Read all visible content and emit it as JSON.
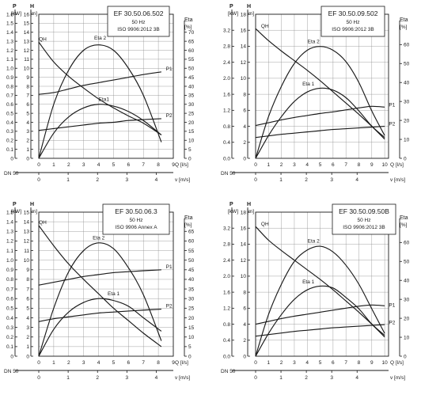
{
  "chart_data": [
    {
      "type": "line",
      "info": {
        "title": "EF 30.50.06.502",
        "freq": "50 Hz",
        "norm": "ISO 9906:2012 3B"
      },
      "left_axis_title_power": "P",
      "left_unit_power": "[kW]",
      "left_axis_title_head": "H",
      "left_unit_head": "[m]",
      "right_axis_title": "Eta",
      "right_unit": "[%]",
      "x_unit": "Q [l/s]",
      "x2_unit": "v [m/s]",
      "dn_label": "DN 50",
      "y_head_ticks": [
        "0",
        "1",
        "2",
        "3",
        "4",
        "5",
        "6",
        "7",
        "8",
        "9",
        "10",
        "11",
        "12",
        "13",
        "14",
        "15",
        "16"
      ],
      "y_power_ticks": [
        "0",
        "0.1",
        "0.2",
        "0.3",
        "0.4",
        "0.5",
        "0.6",
        "0.7",
        "0.8",
        "0.9",
        "1.0",
        "1.1",
        "1.2",
        "1.3",
        "1.4",
        "1.5",
        "1.6"
      ],
      "y_eta_ticks": [
        "0",
        "5",
        "10",
        "15",
        "20",
        "25",
        "30",
        "35",
        "40",
        "45",
        "50",
        "55",
        "60",
        "65",
        "70",
        "75"
      ],
      "x_ticks": [
        "0",
        "1",
        "2",
        "3",
        "4",
        "5",
        "6",
        "7",
        "8",
        "9"
      ],
      "v_ticks": [
        "0",
        "1",
        "2",
        "3",
        "4"
      ],
      "xlim": [
        0,
        9
      ],
      "vlim": [
        0,
        4.58
      ],
      "head_lim": [
        0,
        16
      ],
      "power_lim": [
        0,
        1.6
      ],
      "eta_lim": [
        0,
        80
      ],
      "series": [
        {
          "name": "QH",
          "axis": "head",
          "x": [
            0,
            1,
            2,
            3,
            4,
            5,
            6,
            7,
            8.2
          ],
          "y": [
            12.9,
            10.7,
            9.1,
            7.8,
            6.6,
            5.6,
            4.7,
            3.9,
            2.6
          ]
        },
        {
          "name": "Eta 2",
          "axis": "eta",
          "x": [
            0,
            1,
            2,
            3,
            4,
            5,
            6,
            7,
            8.2
          ],
          "y": [
            0,
            30,
            49,
            60,
            63,
            60,
            50,
            35,
            9
          ]
        },
        {
          "name": "Eta1",
          "axis": "eta",
          "x": [
            0,
            1,
            2,
            3,
            4,
            5,
            6,
            7,
            8.2
          ],
          "y": [
            0,
            14,
            23,
            28,
            30,
            29,
            26,
            21,
            13
          ]
        },
        {
          "name": "P1",
          "axis": "power",
          "x": [
            0,
            1,
            2,
            3,
            4,
            5,
            6,
            7,
            8.2
          ],
          "y": [
            0.71,
            0.73,
            0.77,
            0.81,
            0.84,
            0.87,
            0.9,
            0.93,
            0.96
          ]
        },
        {
          "name": "P2",
          "axis": "power",
          "x": [
            0,
            1,
            2,
            3,
            4,
            5,
            6,
            7,
            8.2
          ],
          "y": [
            0.31,
            0.33,
            0.35,
            0.37,
            0.39,
            0.4,
            0.42,
            0.43,
            0.44
          ]
        }
      ]
    },
    {
      "type": "line",
      "info": {
        "title": "EF 30.50.09.502",
        "freq": "50 Hz",
        "norm": "ISO 9906:2012 3B"
      },
      "left_axis_title_power": "P",
      "left_unit_power": "[kW]",
      "left_axis_title_head": "H",
      "left_unit_head": "[m]",
      "right_axis_title": "Eta",
      "right_unit": "[%]",
      "x_unit": "Q [l/s]",
      "x2_unit": "v [m/s]",
      "dn_label": "DN 50",
      "y_head_ticks": [
        "0",
        "2",
        "4",
        "6",
        "8",
        "10",
        "12",
        "14",
        "16",
        "18"
      ],
      "y_power_ticks": [
        "0.0",
        "0.4",
        "0.8",
        "1.2",
        "1.6",
        "2.0",
        "2.4",
        "2.8",
        "3.2"
      ],
      "y_eta_ticks": [
        "0",
        "10",
        "20",
        "30",
        "40",
        "50",
        "60",
        "70"
      ],
      "x_ticks": [
        "0",
        "1",
        "2",
        "3",
        "4",
        "5",
        "6",
        "7",
        "8",
        "9",
        "10"
      ],
      "v_ticks": [
        "0",
        "1",
        "2",
        "3",
        "4"
      ],
      "xlim": [
        0,
        10.3
      ],
      "vlim": [
        0,
        5.24
      ],
      "head_lim": [
        0,
        18
      ],
      "power_lim": [
        0,
        3.6
      ],
      "eta_lim": [
        0,
        76
      ],
      "series": [
        {
          "name": "QH",
          "axis": "head",
          "x": [
            0,
            1,
            2,
            3,
            4,
            5,
            6,
            7,
            8,
            9,
            10
          ],
          "y": [
            16.2,
            14.7,
            13.4,
            12.2,
            11.0,
            9.7,
            8.3,
            6.9,
            5.5,
            4.0,
            2.4
          ]
        },
        {
          "name": "Eta 2",
          "axis": "eta",
          "x": [
            0,
            1,
            2,
            3,
            4,
            5,
            6,
            7,
            8,
            9,
            10
          ],
          "y": [
            0,
            22,
            38,
            50,
            57,
            59,
            57,
            51,
            40,
            25,
            12
          ]
        },
        {
          "name": "Eta 1",
          "axis": "eta",
          "x": [
            0,
            1,
            2,
            3,
            4,
            5,
            6,
            7,
            8,
            9,
            10
          ],
          "y": [
            0,
            12,
            22,
            30,
            35,
            37,
            36,
            32,
            25,
            17,
            11
          ]
        },
        {
          "name": "P1",
          "axis": "power",
          "x": [
            0,
            1,
            2,
            3,
            4,
            5,
            6,
            7,
            8,
            9,
            10
          ],
          "y": [
            0.82,
            0.89,
            0.96,
            1.02,
            1.07,
            1.12,
            1.16,
            1.21,
            1.26,
            1.3,
            1.28
          ]
        },
        {
          "name": "P2",
          "axis": "power",
          "x": [
            0,
            1,
            2,
            3,
            4,
            5,
            6,
            7,
            8,
            9,
            10
          ],
          "y": [
            0.52,
            0.56,
            0.6,
            0.63,
            0.66,
            0.69,
            0.72,
            0.74,
            0.76,
            0.78,
            0.8
          ]
        }
      ]
    },
    {
      "type": "line",
      "info": {
        "title": "EF 30.50.06.3",
        "freq": "50 Hz",
        "norm": "ISO 9906 Annex A"
      },
      "left_axis_title_power": "P",
      "left_unit_power": "[kW]",
      "left_axis_title_head": "H",
      "left_unit_head": "[m]",
      "right_axis_title": "Eta",
      "right_unit": "[%]",
      "x_unit": "Q [l/s]",
      "x2_unit": "v [m/s]",
      "dn_label": "DN 50",
      "y_head_ticks": [
        "0",
        "1",
        "2",
        "3",
        "4",
        "5",
        "6",
        "7",
        "8",
        "9",
        "10",
        "11",
        "12",
        "13",
        "14",
        "15"
      ],
      "y_power_ticks": [
        "0",
        "0.1",
        "0.2",
        "0.3",
        "0.4",
        "0.5",
        "0.6",
        "0.7",
        "0.8",
        "0.9",
        "1.0",
        "1.1",
        "1.2",
        "1.3",
        "1.4",
        "1.5"
      ],
      "y_eta_ticks": [
        "0",
        "5",
        "10",
        "15",
        "20",
        "25",
        "30",
        "35",
        "40",
        "45",
        "50",
        "55",
        "60",
        "65",
        "70",
        "75"
      ],
      "x_ticks": [
        "0",
        "1",
        "2",
        "3",
        "4",
        "5",
        "6",
        "7",
        "8",
        "9"
      ],
      "v_ticks": [
        "0",
        "1",
        "2",
        "3",
        "4"
      ],
      "xlim": [
        0,
        9
      ],
      "vlim": [
        0,
        4.58
      ],
      "head_lim": [
        0,
        15
      ],
      "power_lim": [
        0,
        1.5
      ],
      "eta_lim": [
        0,
        75
      ],
      "series": [
        {
          "name": "QH",
          "axis": "head",
          "x": [
            0,
            1,
            2,
            3,
            4,
            5,
            6,
            7,
            8.2
          ],
          "y": [
            13.6,
            11.5,
            9.6,
            8.0,
            6.5,
            5.0,
            3.7,
            2.4,
            1.0
          ]
        },
        {
          "name": "Eta 2",
          "axis": "eta",
          "x": [
            0,
            1,
            2,
            3,
            4,
            5,
            6,
            7,
            8.2
          ],
          "y": [
            0,
            25,
            44,
            55,
            59,
            56,
            46,
            32,
            8
          ]
        },
        {
          "name": "Eta 1",
          "axis": "eta",
          "x": [
            0,
            1,
            2,
            3,
            4,
            5,
            6,
            7,
            8.2
          ],
          "y": [
            0,
            14,
            23,
            28,
            30,
            29,
            26,
            20,
            13
          ]
        },
        {
          "name": "P1",
          "axis": "power",
          "x": [
            0,
            1,
            2,
            3,
            4,
            5,
            6,
            7,
            8.2
          ],
          "y": [
            0.74,
            0.77,
            0.8,
            0.83,
            0.85,
            0.87,
            0.88,
            0.89,
            0.9
          ]
        },
        {
          "name": "P2",
          "axis": "power",
          "x": [
            0,
            1,
            2,
            3,
            4,
            5,
            6,
            7,
            8.2
          ],
          "y": [
            0.36,
            0.39,
            0.41,
            0.43,
            0.45,
            0.46,
            0.47,
            0.48,
            0.49
          ]
        }
      ]
    },
    {
      "type": "line",
      "info": {
        "title": "EF 30.50.09.50B",
        "freq": "50 Hz",
        "norm": "ISO 9906:2012 3B"
      },
      "left_axis_title_power": "P",
      "left_unit_power": "[kW]",
      "left_axis_title_head": "H",
      "left_unit_head": "[m]",
      "right_axis_title": "Eta",
      "right_unit": "[%]",
      "x_unit": "Q [l/s]",
      "x2_unit": "v [m/s]",
      "dn_label": "DN 50",
      "y_head_ticks": [
        "0",
        "2",
        "4",
        "6",
        "8",
        "10",
        "12",
        "14",
        "16",
        "18"
      ],
      "y_power_ticks": [
        "0.0",
        "0.4",
        "0.8",
        "1.2",
        "1.6",
        "2.0",
        "2.4",
        "2.8",
        "3.2"
      ],
      "y_eta_ticks": [
        "0",
        "10",
        "20",
        "30",
        "40",
        "50",
        "60",
        "70"
      ],
      "x_ticks": [
        "0",
        "1",
        "2",
        "3",
        "4",
        "5",
        "6",
        "7",
        "8",
        "9",
        "10"
      ],
      "v_ticks": [
        "0",
        "1",
        "2",
        "3",
        "4"
      ],
      "xlim": [
        0,
        10.3
      ],
      "vlim": [
        0,
        5.24
      ],
      "head_lim": [
        0,
        18
      ],
      "power_lim": [
        0,
        3.6
      ],
      "eta_lim": [
        0,
        76
      ],
      "series": [
        {
          "name": "QH",
          "axis": "head",
          "x": [
            0,
            1,
            2,
            3,
            4,
            5,
            6,
            7,
            8,
            9,
            10
          ],
          "y": [
            16.2,
            14.5,
            13.2,
            12.0,
            10.8,
            9.6,
            8.3,
            6.9,
            5.5,
            4.0,
            2.4
          ]
        },
        {
          "name": "Eta 2",
          "axis": "eta",
          "x": [
            0,
            1,
            2,
            3,
            4,
            5,
            6,
            7,
            8,
            9,
            10
          ],
          "y": [
            0,
            22,
            38,
            50,
            56,
            58,
            55,
            48,
            38,
            25,
            12
          ]
        },
        {
          "name": "Eta 1",
          "axis": "eta",
          "x": [
            0,
            1,
            2,
            3,
            4,
            5,
            6,
            7,
            8,
            9,
            10
          ],
          "y": [
            0,
            12,
            22,
            30,
            35,
            37,
            36,
            31,
            25,
            17,
            11
          ]
        },
        {
          "name": "P1",
          "axis": "power",
          "x": [
            0,
            1,
            2,
            3,
            4,
            5,
            6,
            7,
            8,
            9,
            10
          ],
          "y": [
            0.8,
            0.87,
            0.94,
            1.0,
            1.05,
            1.1,
            1.15,
            1.2,
            1.25,
            1.28,
            1.26
          ]
        },
        {
          "name": "P2",
          "axis": "power",
          "x": [
            0,
            1,
            2,
            3,
            4,
            5,
            6,
            7,
            8,
            9,
            10
          ],
          "y": [
            0.5,
            0.54,
            0.58,
            0.62,
            0.65,
            0.68,
            0.71,
            0.73,
            0.75,
            0.77,
            0.79
          ]
        }
      ]
    }
  ]
}
